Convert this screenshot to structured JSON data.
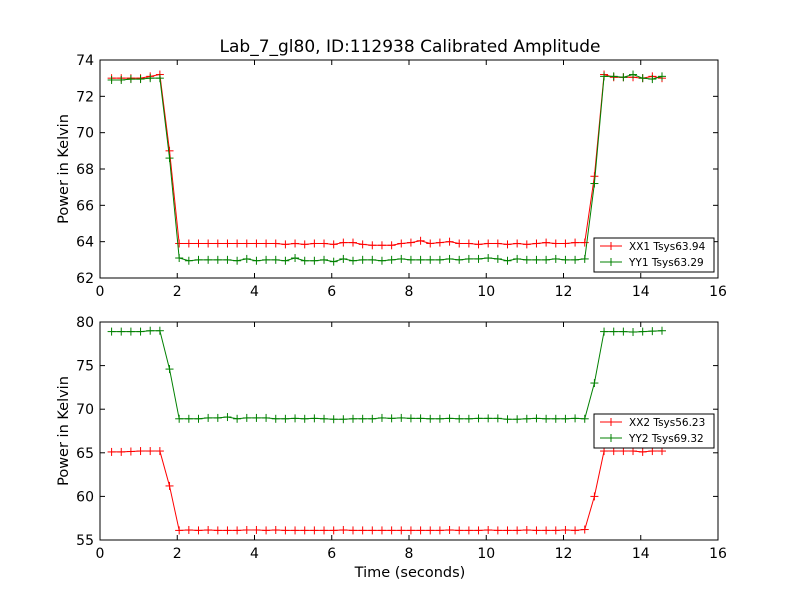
{
  "chart_data": [
    {
      "type": "line",
      "title": "Lab_7_gl80, ID:112938 Calibrated Amplitude",
      "xlabel": "",
      "ylabel": "Power in Kelvin",
      "xlim": [
        0,
        16
      ],
      "ylim": [
        62,
        74
      ],
      "xticks": [
        "0",
        "2",
        "4",
        "6",
        "8",
        "10",
        "12",
        "14",
        "16"
      ],
      "yticks": [
        "62",
        "64",
        "66",
        "68",
        "70",
        "72",
        "74"
      ],
      "grid": false,
      "legend_position": "lower-right",
      "x": [
        0.3,
        0.55,
        0.8,
        1.05,
        1.3,
        1.55,
        1.8,
        2.05,
        2.3,
        2.55,
        2.8,
        3.05,
        3.3,
        3.55,
        3.8,
        4.05,
        4.3,
        4.55,
        4.8,
        5.05,
        5.3,
        5.55,
        5.8,
        6.05,
        6.3,
        6.55,
        6.8,
        7.05,
        7.3,
        7.55,
        7.8,
        8.05,
        8.3,
        8.55,
        8.8,
        9.05,
        9.3,
        9.55,
        9.8,
        10.05,
        10.3,
        10.55,
        10.8,
        11.05,
        11.3,
        11.55,
        11.8,
        12.05,
        12.3,
        12.55,
        12.8,
        13.05,
        13.3,
        13.55,
        13.8,
        14.05,
        14.3,
        14.55
      ],
      "series": [
        {
          "name": "XX1 Tsys63.94",
          "color": "#ff0000",
          "values": [
            73.0,
            73.0,
            73.0,
            73.0,
            73.1,
            73.2,
            69.0,
            63.9,
            63.9,
            63.9,
            63.9,
            63.9,
            63.9,
            63.9,
            63.9,
            63.9,
            63.9,
            63.9,
            63.85,
            63.9,
            63.85,
            63.9,
            63.9,
            63.85,
            63.95,
            63.95,
            63.85,
            63.8,
            63.8,
            63.8,
            63.9,
            63.95,
            64.05,
            63.9,
            63.95,
            64.0,
            63.9,
            63.9,
            63.85,
            63.9,
            63.9,
            63.85,
            63.9,
            63.85,
            63.9,
            63.95,
            63.9,
            63.9,
            63.95,
            63.95,
            67.6,
            73.2,
            73.05,
            73.05,
            73.05,
            73.0,
            73.1,
            73.0
          ]
        },
        {
          "name": "YY1 Tsys63.29",
          "color": "#008000",
          "values": [
            72.9,
            72.9,
            72.95,
            72.95,
            73.0,
            73.0,
            68.6,
            63.1,
            62.95,
            63.0,
            63.0,
            63.0,
            63.0,
            62.95,
            63.05,
            62.95,
            63.0,
            63.0,
            62.95,
            63.1,
            62.95,
            62.95,
            63.0,
            62.9,
            63.05,
            62.95,
            63.0,
            63.0,
            62.95,
            63.0,
            63.05,
            63.0,
            63.0,
            63.0,
            63.0,
            63.05,
            63.0,
            63.05,
            63.05,
            63.1,
            63.05,
            62.95,
            63.05,
            63.0,
            63.0,
            63.0,
            63.05,
            63.0,
            63.0,
            63.05,
            67.2,
            73.1,
            73.1,
            73.05,
            73.2,
            73.0,
            72.95,
            73.1
          ]
        }
      ]
    },
    {
      "type": "line",
      "title": "",
      "xlabel": "Time (seconds)",
      "ylabel": "Power in Kelvin",
      "xlim": [
        0,
        16
      ],
      "ylim": [
        55,
        80
      ],
      "xticks": [
        "0",
        "2",
        "4",
        "6",
        "8",
        "10",
        "12",
        "14",
        "16"
      ],
      "yticks": [
        "55",
        "60",
        "65",
        "70",
        "75",
        "80"
      ],
      "grid": false,
      "legend_position": "right",
      "x": [
        0.3,
        0.55,
        0.8,
        1.05,
        1.3,
        1.55,
        1.8,
        2.05,
        2.3,
        2.55,
        2.8,
        3.05,
        3.3,
        3.55,
        3.8,
        4.05,
        4.3,
        4.55,
        4.8,
        5.05,
        5.3,
        5.55,
        5.8,
        6.05,
        6.3,
        6.55,
        6.8,
        7.05,
        7.3,
        7.55,
        7.8,
        8.05,
        8.3,
        8.55,
        8.8,
        9.05,
        9.3,
        9.55,
        9.8,
        10.05,
        10.3,
        10.55,
        10.8,
        11.05,
        11.3,
        11.55,
        11.8,
        12.05,
        12.3,
        12.55,
        12.8,
        13.05,
        13.3,
        13.55,
        13.8,
        14.05,
        14.3,
        14.55
      ],
      "series": [
        {
          "name": "XX2 Tsys56.23",
          "color": "#ff0000",
          "values": [
            65.1,
            65.1,
            65.15,
            65.2,
            65.2,
            65.2,
            61.2,
            56.1,
            56.15,
            56.1,
            56.15,
            56.1,
            56.1,
            56.1,
            56.15,
            56.15,
            56.1,
            56.15,
            56.1,
            56.1,
            56.1,
            56.1,
            56.1,
            56.1,
            56.15,
            56.1,
            56.1,
            56.1,
            56.1,
            56.1,
            56.1,
            56.1,
            56.1,
            56.1,
            56.1,
            56.15,
            56.1,
            56.1,
            56.1,
            56.15,
            56.1,
            56.1,
            56.1,
            56.15,
            56.1,
            56.1,
            56.1,
            56.15,
            56.1,
            56.2,
            60.0,
            65.2,
            65.2,
            65.2,
            65.2,
            65.1,
            65.2,
            65.2
          ]
        },
        {
          "name": "YY2 Tsys69.32",
          "color": "#008000",
          "values": [
            78.9,
            78.9,
            78.9,
            78.9,
            79.0,
            79.0,
            74.6,
            68.9,
            68.9,
            68.9,
            69.0,
            69.0,
            69.1,
            68.9,
            69.0,
            69.0,
            69.0,
            68.9,
            68.9,
            68.95,
            68.9,
            68.95,
            68.9,
            68.85,
            68.85,
            68.9,
            68.9,
            68.9,
            69.0,
            68.95,
            69.0,
            68.95,
            68.95,
            68.9,
            68.9,
            68.95,
            68.9,
            68.9,
            68.95,
            68.95,
            68.95,
            68.85,
            68.85,
            68.9,
            68.95,
            68.9,
            68.9,
            68.9,
            68.95,
            68.9,
            73.0,
            78.9,
            78.9,
            78.9,
            78.85,
            78.9,
            78.95,
            79.0
          ]
        }
      ]
    }
  ]
}
